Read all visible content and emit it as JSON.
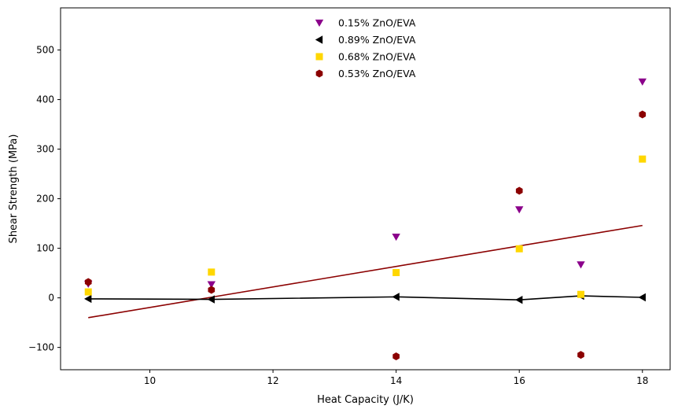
{
  "chart_data": {
    "type": "scatter",
    "title": "",
    "xlabel": "Heat Capacity (J/K)",
    "ylabel": "Shear Strength (MPa)",
    "xlim": [
      8.55,
      18.45
    ],
    "ylim": [
      -145,
      585
    ],
    "xticks": [
      10,
      12,
      14,
      16,
      18
    ],
    "yticks": [
      -100,
      0,
      100,
      200,
      300,
      400,
      500
    ],
    "grid": false,
    "legend_position": "top-center",
    "x": [
      9,
      11,
      14,
      16,
      17,
      18
    ],
    "series": [
      {
        "name": "0.15% ZnO/EVA",
        "marker": "triangle-down",
        "color": "#8b008b",
        "values": [
          28,
          27,
          123,
          178,
          67,
          436
        ]
      },
      {
        "name": "0.89% ZnO/EVA",
        "marker": "triangle-left",
        "color": "#000000",
        "values": [
          -2,
          -3,
          2,
          -4,
          4,
          1
        ],
        "connected": true
      },
      {
        "name": "0.68% ZnO/EVA",
        "marker": "square",
        "color": "#ffd700",
        "values": [
          12,
          52,
          51,
          99,
          7,
          280
        ]
      },
      {
        "name": "0.53% ZnO/EVA",
        "marker": "hexagon",
        "color": "#8b0000",
        "values": [
          32,
          16,
          -118,
          216,
          -115,
          370
        ]
      }
    ],
    "trend_line": {
      "color": "#8b0000",
      "x": [
        9,
        18
      ],
      "y": [
        -40,
        146
      ]
    }
  }
}
